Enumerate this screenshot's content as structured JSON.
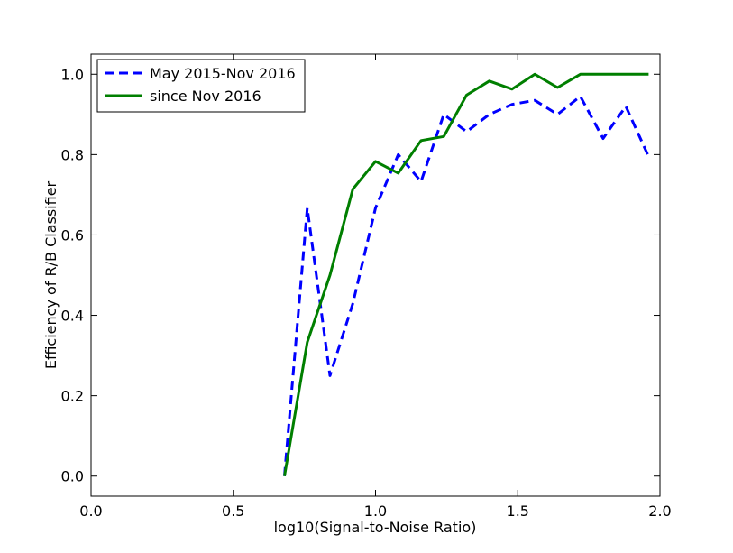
{
  "chart_data": {
    "type": "line",
    "xlabel": "log10(Signal-to-Noise Ratio)",
    "ylabel": "Efficiency of R/B Classifier",
    "xlim": [
      0.0,
      2.0
    ],
    "ylim": [
      -0.05,
      1.05
    ],
    "xticks": [
      "0.0",
      "0.5",
      "1.0",
      "1.5",
      "2.0"
    ],
    "yticks": [
      "0.0",
      "0.2",
      "0.4",
      "0.6",
      "0.8",
      "1.0"
    ],
    "grid": false,
    "legend_position": "top-left",
    "series": [
      {
        "name": "May 2015-Nov 2016",
        "color": "#0000ff",
        "style": "dashed",
        "x": [
          0.68,
          0.76,
          0.84,
          0.92,
          1.0,
          1.08,
          1.16,
          1.24,
          1.32,
          1.4,
          1.48,
          1.56,
          1.64,
          1.72,
          1.8,
          1.88,
          1.96
        ],
        "y": [
          0.0,
          0.667,
          0.25,
          0.429,
          0.667,
          0.8,
          0.733,
          0.9,
          0.857,
          0.9,
          0.925,
          0.935,
          0.9,
          0.945,
          0.84,
          0.92,
          0.795
        ]
      },
      {
        "name": "since Nov 2016",
        "color": "#007f00",
        "style": "solid",
        "x": [
          0.68,
          0.76,
          0.84,
          0.92,
          1.0,
          1.08,
          1.16,
          1.24,
          1.32,
          1.4,
          1.48,
          1.56,
          1.64,
          1.72,
          1.8,
          1.88,
          1.96
        ],
        "y": [
          0.0,
          0.333,
          0.5,
          0.714,
          0.783,
          0.754,
          0.835,
          0.845,
          0.948,
          0.983,
          0.963,
          1.0,
          0.967,
          1.0,
          1.0,
          1.0,
          1.0
        ]
      }
    ]
  }
}
